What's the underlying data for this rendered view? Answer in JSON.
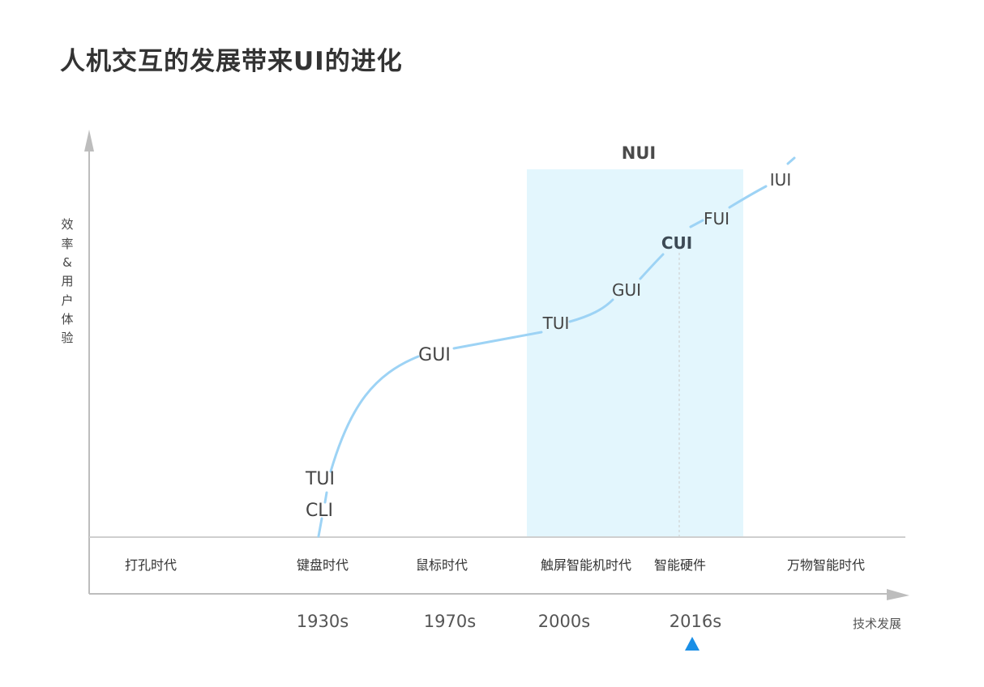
{
  "title": "人机交互的发展带来UI的进化",
  "y_axis_label": [
    "效",
    "率",
    "&",
    "用",
    "户",
    "体",
    "验"
  ],
  "x_axis_label": "技术发展",
  "region": {
    "label": "NUI",
    "fill": "#e3f6fd"
  },
  "curve_color": "#9dd3f5",
  "curve_labels": [
    {
      "id": "cli",
      "text": "CLI"
    },
    {
      "id": "tui-1",
      "text": "TUI"
    },
    {
      "id": "gui-1",
      "text": "GUI"
    },
    {
      "id": "tui-2",
      "text": "TUI"
    },
    {
      "id": "gui-2",
      "text": "GUI"
    },
    {
      "id": "cui",
      "text": "CUI"
    },
    {
      "id": "fui",
      "text": "FUI"
    },
    {
      "id": "iui",
      "text": "IUI"
    }
  ],
  "eras": [
    {
      "id": "punch-card",
      "text": "打孔时代"
    },
    {
      "id": "keyboard",
      "text": "键盘时代"
    },
    {
      "id": "mouse",
      "text": "鼠标时代"
    },
    {
      "id": "touchscreen",
      "text": "触屏智能机时代"
    },
    {
      "id": "smart-hardware",
      "text": "智能硬件"
    },
    {
      "id": "iot",
      "text": "万物智能时代"
    }
  ],
  "years": [
    {
      "id": "1930s",
      "text": "1930s"
    },
    {
      "id": "1970s",
      "text": "1970s"
    },
    {
      "id": "2000s",
      "text": "2000s"
    },
    {
      "id": "2016s",
      "text": "2016s"
    }
  ],
  "marker_color": "#1a8fe6"
}
